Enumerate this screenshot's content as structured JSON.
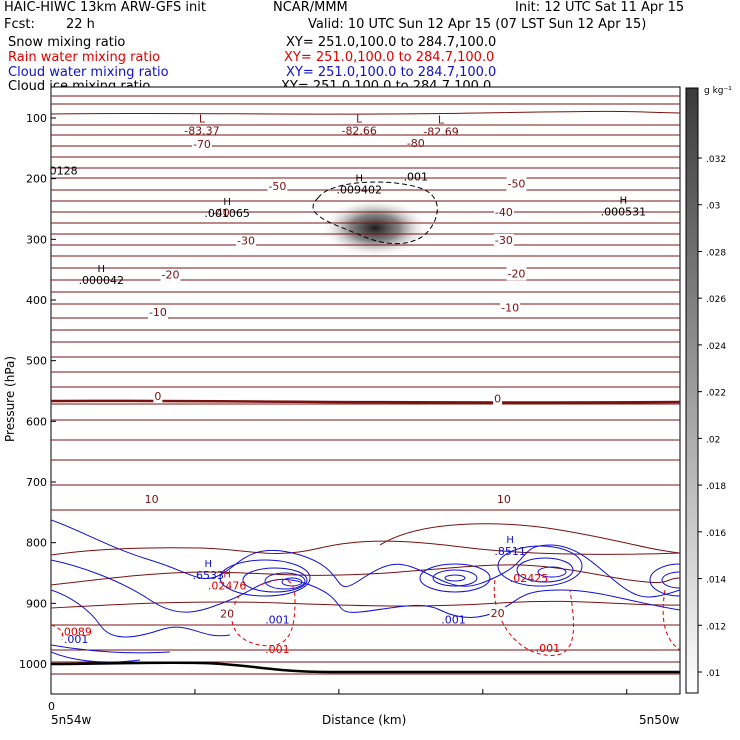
{
  "header": {
    "model": "HAIC-HIWC 13km ARW-GFS init",
    "org": "NCAR/MMM",
    "init": "Init: 12 UTC Sat 11 Apr 15",
    "fcst_label": "Fcst:",
    "fcst_value": "22 h",
    "valid": "Valid: 10 UTC Sun 12 Apr 15 (07 LST Sun 12 Apr 15)"
  },
  "fields": [
    {
      "name": "Snow mixing ratio",
      "xy": "XY= 251.0,100.0 to 284.7,100.0",
      "color": "#000000"
    },
    {
      "name": "Rain water mixing ratio",
      "xy": "XY= 251.0,100.0 to 284.7,100.0",
      "color": "#e00000"
    },
    {
      "name": "Cloud water mixing ratio",
      "xy": "XY= 251.0,100.0 to 284.7,100.0",
      "color": "#1010d0"
    },
    {
      "name": "Cloud ice mixing ratio",
      "xy": "XY= 251.0,100.0 to 284.7,100.0",
      "color": "#000000"
    }
  ],
  "chart_data": {
    "type": "cross-section",
    "ylabel": "Pressure (hPa)",
    "xlabel": "Distance (km)",
    "x_left_label": "5n54w",
    "x_right_label": "5n50w",
    "x_zero_label": "0",
    "y_ticks": [
      100,
      200,
      300,
      400,
      500,
      600,
      700,
      800,
      900,
      1000
    ],
    "ylim": [
      1050,
      50
    ],
    "y_scale": "linear",
    "colorbar": {
      "unit": "g kg⁻¹",
      "ticks": [
        ".032",
        ".03",
        ".028",
        ".026",
        ".024",
        ".022",
        ".02",
        ".018",
        ".016",
        ".014",
        ".012",
        ".01"
      ]
    },
    "temperature_labels": [
      {
        "x": 0.24,
        "p": 143,
        "text": "-70"
      },
      {
        "x": 0.36,
        "p": 212,
        "text": "-50"
      },
      {
        "x": 0.27,
        "p": 256,
        "text": "-40"
      },
      {
        "x": 0.31,
        "p": 302,
        "text": "-30"
      },
      {
        "x": 0.19,
        "p": 358,
        "text": "-20"
      },
      {
        "x": 0.17,
        "p": 420,
        "text": "-10"
      },
      {
        "x": 0.17,
        "p": 558,
        "text": "0"
      },
      {
        "x": 0.16,
        "p": 728,
        "text": "10"
      },
      {
        "x": 0.28,
        "p": 917,
        "text": "20"
      },
      {
        "x": 0.74,
        "p": 208,
        "text": "-50"
      },
      {
        "x": 0.72,
        "p": 255,
        "text": "-40"
      },
      {
        "x": 0.72,
        "p": 301,
        "text": "-30"
      },
      {
        "x": 0.74,
        "p": 356,
        "text": "-20"
      },
      {
        "x": 0.73,
        "p": 412,
        "text": "-10"
      },
      {
        "x": 0.71,
        "p": 562,
        "text": "0"
      },
      {
        "x": 0.72,
        "p": 728,
        "text": "10"
      },
      {
        "x": 0.71,
        "p": 916,
        "text": "20"
      }
    ],
    "low_labels": [
      {
        "x": 0.24,
        "p": 84,
        "marker": "L",
        "text": "-83.37"
      },
      {
        "x": 0.49,
        "p": 84,
        "marker": "L",
        "text": "-82.66"
      },
      {
        "x": 0.62,
        "p": 86,
        "marker": "L",
        "text": "-82.69"
      },
      {
        "x": 0.58,
        "p": 105,
        "marker": "",
        "text": "-80"
      }
    ],
    "high_labels": [
      {
        "x": 0.49,
        "p": 241,
        "marker": "H",
        "text": ".009402",
        "color": "#000000"
      },
      {
        "x": 0.28,
        "p": 280,
        "marker": "H",
        "text": ".001065",
        "color": "#000000"
      },
      {
        "x": 0.91,
        "p": 277,
        "marker": "H",
        "text": ".000531",
        "color": "#000000"
      },
      {
        "x": 0.08,
        "p": 390,
        "marker": "H",
        "text": ".000042",
        "color": "#000000"
      },
      {
        "x": 0.73,
        "p": 837,
        "marker": "H",
        "text": ".8511",
        "color": "#1010d0"
      },
      {
        "x": 0.25,
        "p": 876,
        "marker": "H",
        "text": ".6533",
        "color": "#1010d0"
      },
      {
        "x": 0.28,
        "p": 894,
        "marker": "H",
        "text": ".02476",
        "color": "#e00000"
      }
    ],
    "misc_labels": [
      {
        "x": 0.58,
        "p": 203,
        "text": ".001",
        "color": "#000000"
      },
      {
        "x": 0.02,
        "p": 193,
        "text": "0128",
        "color": "#000000"
      },
      {
        "x": 0.76,
        "p": 865,
        "text": ".02425",
        "color": "#e00000"
      },
      {
        "x": 0.36,
        "p": 933,
        "text": ".001",
        "color": "#1010d0"
      },
      {
        "x": 0.64,
        "p": 933,
        "text": ".001",
        "color": "#1010d0"
      },
      {
        "x": 0.36,
        "p": 982,
        "text": ".001",
        "color": "#e00000"
      },
      {
        "x": 0.79,
        "p": 980,
        "text": ".001",
        "color": "#e00000"
      },
      {
        "x": 0.04,
        "p": 953,
        "text": ".0089",
        "color": "#e00000"
      },
      {
        "x": 0.04,
        "p": 965,
        "text": ".001",
        "color": "#1010d0"
      }
    ]
  }
}
